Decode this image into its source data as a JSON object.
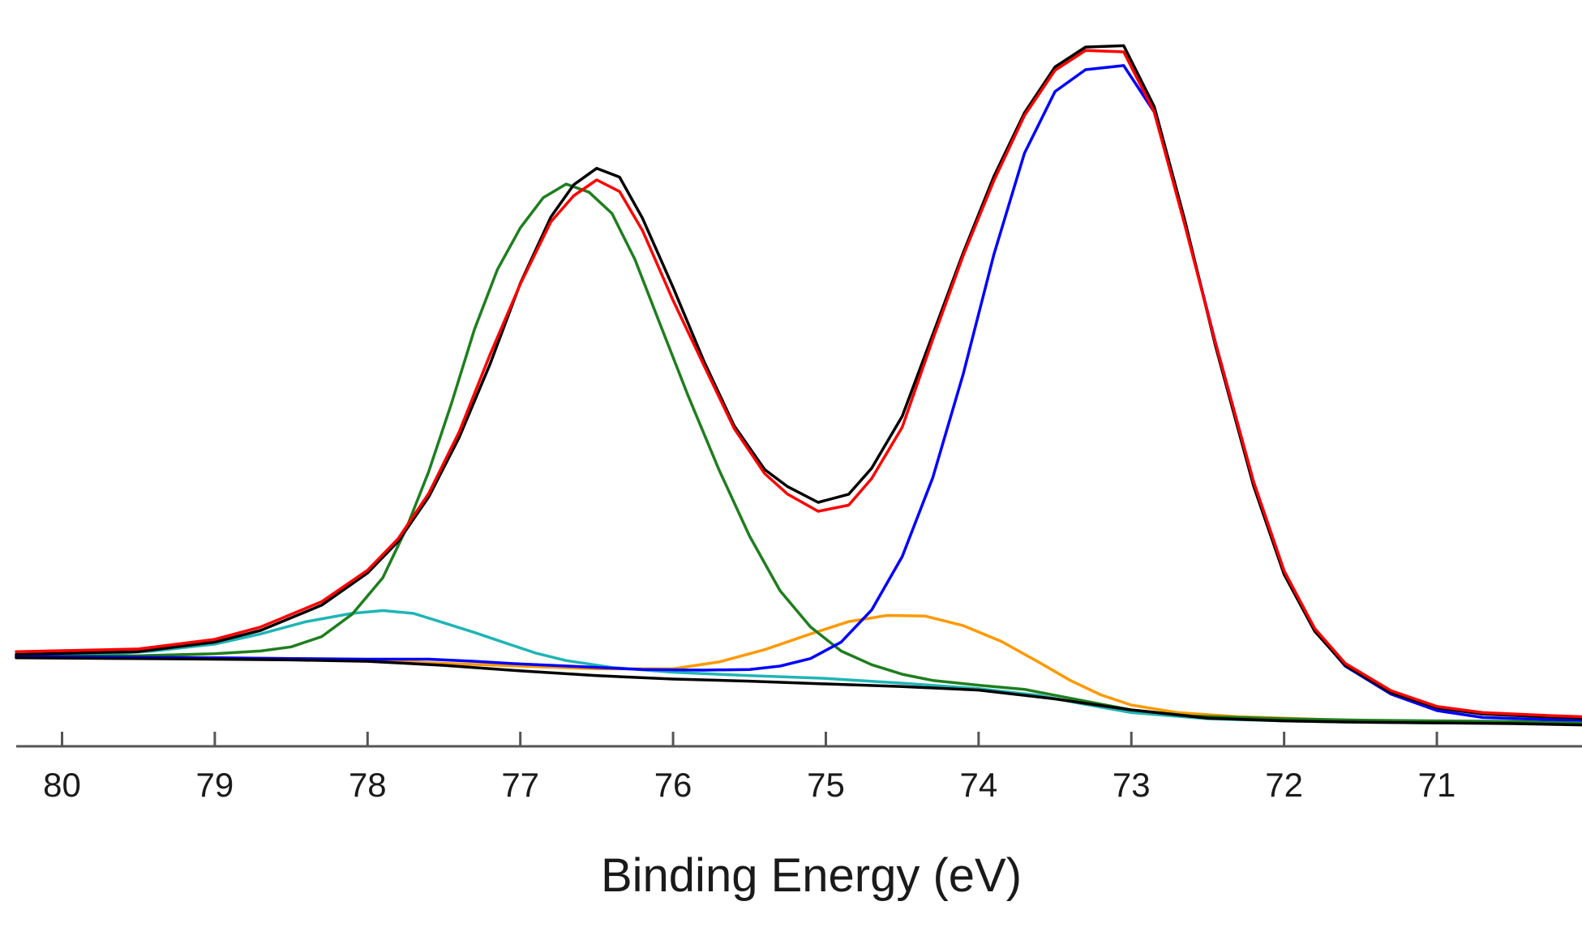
{
  "chart_data": {
    "type": "line",
    "title": "",
    "xlabel": "Binding Energy (eV)",
    "ylabel": "",
    "x_reversed": true,
    "xlim": [
      80.3,
      70.05
    ],
    "ylim": [
      0,
      100
    ],
    "xticks": [
      80,
      79,
      78,
      77,
      76,
      75,
      74,
      73,
      72,
      71
    ],
    "xtick_labels": [
      "80",
      "79",
      "78",
      "77",
      "76",
      "75",
      "74",
      "73",
      "72",
      "71"
    ],
    "grid": false,
    "legend": "none",
    "series": [
      {
        "name": "black",
        "color": "#000000",
        "points": [
          [
            80.3,
            13.3
          ],
          [
            79.5,
            13.7
          ],
          [
            79.0,
            15.1
          ],
          [
            78.7,
            16.8
          ],
          [
            78.3,
            20.5
          ],
          [
            78.0,
            25.2
          ],
          [
            77.8,
            29.8
          ],
          [
            77.6,
            36.3
          ],
          [
            77.4,
            45.0
          ],
          [
            77.2,
            55.6
          ],
          [
            77.0,
            67.5
          ],
          [
            76.8,
            77.2
          ],
          [
            76.65,
            81.9
          ],
          [
            76.5,
            84.3
          ],
          [
            76.35,
            83.0
          ],
          [
            76.2,
            77.0
          ],
          [
            76.0,
            66.9
          ],
          [
            75.8,
            56.2
          ],
          [
            75.6,
            46.7
          ],
          [
            75.4,
            40.3
          ],
          [
            75.25,
            37.8
          ],
          [
            75.05,
            35.5
          ],
          [
            74.85,
            36.7
          ],
          [
            74.7,
            40.5
          ],
          [
            74.5,
            48.1
          ],
          [
            74.3,
            60.0
          ],
          [
            74.1,
            72.0
          ],
          [
            73.9,
            83.1
          ],
          [
            73.7,
            92.4
          ],
          [
            73.5,
            99.1
          ],
          [
            73.3,
            102.0
          ],
          [
            73.05,
            102.2
          ],
          [
            72.85,
            93.3
          ],
          [
            72.65,
            76.7
          ],
          [
            72.45,
            58.4
          ],
          [
            72.2,
            37.9
          ],
          [
            72.0,
            25.0
          ],
          [
            71.8,
            16.7
          ],
          [
            71.6,
            11.7
          ],
          [
            71.3,
            7.7
          ],
          [
            71.0,
            5.5
          ],
          [
            70.7,
            4.6
          ],
          [
            70.3,
            4.2
          ],
          [
            70.05,
            4.0
          ]
        ]
      },
      {
        "name": "red",
        "color": "#ff0000",
        "points": [
          [
            80.3,
            13.7
          ],
          [
            79.5,
            14.1
          ],
          [
            79.0,
            15.5
          ],
          [
            78.7,
            17.3
          ],
          [
            78.3,
            21.0
          ],
          [
            78.0,
            25.6
          ],
          [
            77.8,
            30.2
          ],
          [
            77.6,
            36.8
          ],
          [
            77.4,
            45.8
          ],
          [
            77.2,
            57.0
          ],
          [
            77.0,
            67.4
          ],
          [
            76.8,
            76.5
          ],
          [
            76.65,
            80.3
          ],
          [
            76.5,
            82.6
          ],
          [
            76.35,
            80.9
          ],
          [
            76.2,
            75.2
          ],
          [
            76.0,
            65.0
          ],
          [
            75.8,
            55.6
          ],
          [
            75.6,
            46.3
          ],
          [
            75.4,
            39.7
          ],
          [
            75.25,
            36.7
          ],
          [
            75.05,
            34.2
          ],
          [
            74.85,
            35.1
          ],
          [
            74.7,
            39.0
          ],
          [
            74.5,
            46.5
          ],
          [
            74.3,
            59.3
          ],
          [
            74.1,
            71.6
          ],
          [
            73.9,
            82.5
          ],
          [
            73.7,
            92.0
          ],
          [
            73.5,
            98.6
          ],
          [
            73.3,
            101.5
          ],
          [
            73.05,
            101.3
          ],
          [
            72.85,
            92.5
          ],
          [
            72.65,
            76.0
          ],
          [
            72.45,
            58.8
          ],
          [
            72.2,
            38.5
          ],
          [
            72.0,
            25.5
          ],
          [
            71.8,
            17.1
          ],
          [
            71.6,
            12.0
          ],
          [
            71.3,
            8.0
          ],
          [
            71.0,
            5.7
          ],
          [
            70.7,
            4.8
          ],
          [
            70.3,
            4.4
          ],
          [
            70.05,
            4.2
          ]
        ]
      },
      {
        "name": "green",
        "color": "#1e7e1e",
        "points": [
          [
            80.3,
            13.0
          ],
          [
            79.5,
            13.1
          ],
          [
            79.0,
            13.4
          ],
          [
            78.7,
            13.8
          ],
          [
            78.5,
            14.4
          ],
          [
            78.3,
            15.9
          ],
          [
            78.1,
            19.2
          ],
          [
            77.9,
            24.5
          ],
          [
            77.75,
            31.5
          ],
          [
            77.6,
            40.0
          ],
          [
            77.45,
            50.0
          ],
          [
            77.3,
            60.8
          ],
          [
            77.15,
            69.5
          ],
          [
            77.0,
            75.6
          ],
          [
            76.85,
            80.0
          ],
          [
            76.7,
            82.0
          ],
          [
            76.55,
            80.8
          ],
          [
            76.4,
            77.7
          ],
          [
            76.25,
            71.0
          ],
          [
            76.1,
            62.4
          ],
          [
            75.9,
            51.0
          ],
          [
            75.7,
            40.3
          ],
          [
            75.5,
            30.6
          ],
          [
            75.3,
            22.6
          ],
          [
            75.1,
            17.3
          ],
          [
            74.9,
            13.8
          ],
          [
            74.7,
            11.8
          ],
          [
            74.5,
            10.4
          ],
          [
            74.3,
            9.5
          ],
          [
            74.0,
            8.8
          ],
          [
            73.7,
            8.2
          ],
          [
            73.4,
            6.9
          ],
          [
            73.0,
            5.2
          ],
          [
            72.6,
            4.3
          ],
          [
            72.0,
            3.9
          ],
          [
            71.5,
            3.7
          ],
          [
            71.0,
            3.6
          ],
          [
            70.5,
            3.5
          ],
          [
            70.05,
            3.3
          ]
        ]
      },
      {
        "name": "cyan",
        "color": "#1fb5b5",
        "points": [
          [
            80.3,
            13.2
          ],
          [
            79.8,
            13.2
          ],
          [
            79.4,
            13.8
          ],
          [
            79.0,
            14.8
          ],
          [
            78.7,
            16.3
          ],
          [
            78.4,
            18.1
          ],
          [
            78.1,
            19.3
          ],
          [
            77.9,
            19.7
          ],
          [
            77.7,
            19.3
          ],
          [
            77.5,
            17.9
          ],
          [
            77.3,
            16.5
          ],
          [
            77.1,
            15.0
          ],
          [
            76.9,
            13.5
          ],
          [
            76.7,
            12.4
          ],
          [
            76.4,
            11.4
          ],
          [
            76.0,
            10.7
          ],
          [
            75.5,
            10.2
          ],
          [
            75.0,
            9.8
          ],
          [
            74.5,
            9.1
          ],
          [
            74.0,
            8.3
          ],
          [
            73.6,
            7.3
          ],
          [
            73.3,
            6.0
          ],
          [
            73.0,
            4.8
          ],
          [
            72.5,
            3.9
          ],
          [
            72.0,
            3.6
          ],
          [
            71.5,
            3.4
          ],
          [
            71.0,
            3.3
          ],
          [
            70.5,
            3.3
          ],
          [
            70.05,
            3.2
          ]
        ]
      },
      {
        "name": "orange",
        "color": "#ff9900",
        "points": [
          [
            80.3,
            13.0
          ],
          [
            79.0,
            12.8
          ],
          [
            78.5,
            12.7
          ],
          [
            78.0,
            12.4
          ],
          [
            77.5,
            12.0
          ],
          [
            77.0,
            11.6
          ],
          [
            76.5,
            11.2
          ],
          [
            76.0,
            11.2
          ],
          [
            75.7,
            12.2
          ],
          [
            75.4,
            14.0
          ],
          [
            75.1,
            16.3
          ],
          [
            74.85,
            18.1
          ],
          [
            74.6,
            19.0
          ],
          [
            74.35,
            18.9
          ],
          [
            74.1,
            17.5
          ],
          [
            73.85,
            15.2
          ],
          [
            73.6,
            12.1
          ],
          [
            73.4,
            9.5
          ],
          [
            73.2,
            7.4
          ],
          [
            73.0,
            5.9
          ],
          [
            72.7,
            4.8
          ],
          [
            72.3,
            4.2
          ],
          [
            72.0,
            4.0
          ],
          [
            71.5,
            3.6
          ],
          [
            71.0,
            3.4
          ],
          [
            70.5,
            3.3
          ],
          [
            70.05,
            3.2
          ]
        ]
      },
      {
        "name": "blue",
        "color": "#0000ff",
        "points": [
          [
            80.3,
            13.0
          ],
          [
            79.5,
            12.9
          ],
          [
            79.0,
            12.8
          ],
          [
            78.5,
            12.7
          ],
          [
            78.0,
            12.6
          ],
          [
            77.6,
            12.6
          ],
          [
            77.3,
            12.3
          ],
          [
            77.0,
            11.9
          ],
          [
            76.6,
            11.5
          ],
          [
            76.2,
            11.1
          ],
          [
            75.8,
            11.0
          ],
          [
            75.5,
            11.1
          ],
          [
            75.3,
            11.6
          ],
          [
            75.1,
            12.7
          ],
          [
            74.9,
            15.1
          ],
          [
            74.7,
            19.8
          ],
          [
            74.5,
            27.6
          ],
          [
            74.3,
            39.1
          ],
          [
            74.1,
            54.3
          ],
          [
            73.9,
            71.7
          ],
          [
            73.7,
            86.5
          ],
          [
            73.5,
            95.5
          ],
          [
            73.3,
            98.7
          ],
          [
            73.05,
            99.3
          ],
          [
            72.85,
            92.5
          ],
          [
            72.65,
            76.3
          ],
          [
            72.45,
            58.9
          ],
          [
            72.2,
            38.5
          ],
          [
            72.0,
            25.5
          ],
          [
            71.8,
            16.8
          ],
          [
            71.6,
            11.6
          ],
          [
            71.3,
            7.5
          ],
          [
            71.0,
            5.1
          ],
          [
            70.7,
            4.1
          ],
          [
            70.3,
            3.8
          ],
          [
            70.05,
            3.7
          ]
        ]
      },
      {
        "name": "baseline",
        "color": "#000000",
        "points": [
          [
            80.3,
            12.8
          ],
          [
            79.5,
            12.7
          ],
          [
            79.0,
            12.6
          ],
          [
            78.5,
            12.5
          ],
          [
            78.0,
            12.3
          ],
          [
            77.5,
            11.7
          ],
          [
            77.0,
            10.9
          ],
          [
            76.5,
            10.2
          ],
          [
            76.0,
            9.7
          ],
          [
            75.5,
            9.4
          ],
          [
            75.0,
            9.0
          ],
          [
            74.5,
            8.6
          ],
          [
            74.0,
            8.1
          ],
          [
            73.5,
            6.8
          ],
          [
            73.0,
            5.2
          ],
          [
            72.5,
            4.0
          ],
          [
            72.0,
            3.6
          ],
          [
            71.5,
            3.4
          ],
          [
            71.0,
            3.3
          ],
          [
            70.5,
            3.2
          ],
          [
            70.05,
            3.0
          ]
        ]
      }
    ]
  }
}
